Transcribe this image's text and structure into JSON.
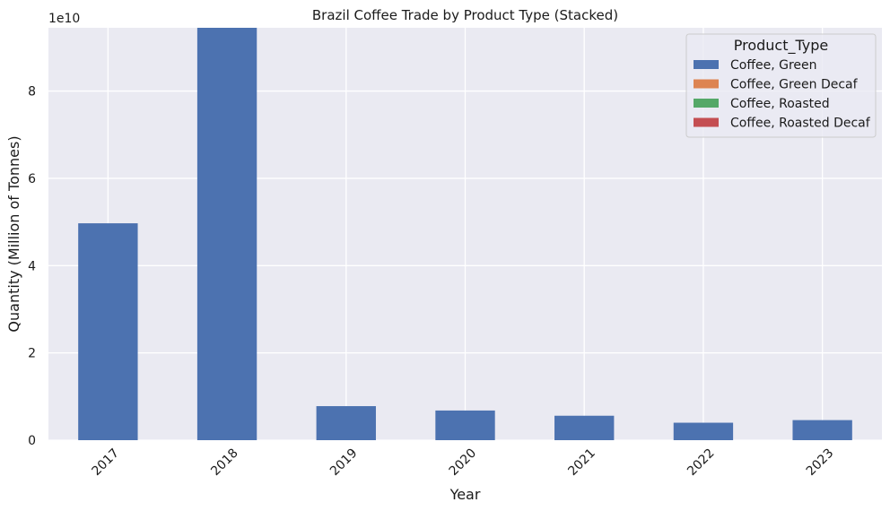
{
  "chart_data": {
    "type": "bar",
    "stacked": true,
    "title": "Brazil Coffee Trade by Product Type (Stacked)",
    "xlabel": "Year",
    "ylabel": "Quantity (Million of Tonnes)",
    "offset_text": "1e10",
    "categories": [
      "2017",
      "2018",
      "2019",
      "2020",
      "2021",
      "2022",
      "2023"
    ],
    "ylim": [
      0,
      9.45
    ],
    "yticks": [
      0,
      2,
      4,
      6,
      8
    ],
    "ytick_labels": [
      "0",
      "2",
      "4",
      "6",
      "8"
    ],
    "grid": true,
    "legend_position": "top-right",
    "legend_title": "Product_Type",
    "series": [
      {
        "name": "Coffee, Green",
        "color": "#4c72b0",
        "values": [
          4.97,
          9.5,
          0.78,
          0.68,
          0.56,
          0.4,
          0.46
        ]
      },
      {
        "name": "Coffee, Green Decaf",
        "color": "#dd8452",
        "values": [
          0,
          0,
          0,
          0,
          0,
          0,
          0
        ]
      },
      {
        "name": "Coffee, Roasted",
        "color": "#55a868",
        "values": [
          0,
          0,
          0,
          0,
          0,
          0,
          0
        ]
      },
      {
        "name": "Coffee, Roasted Decaf",
        "color": "#c44e52",
        "values": [
          0,
          0,
          0,
          0,
          0,
          0,
          0
        ]
      }
    ],
    "colors": {
      "plot_background": "#eaeaf2",
      "grid": "#ffffff"
    }
  }
}
